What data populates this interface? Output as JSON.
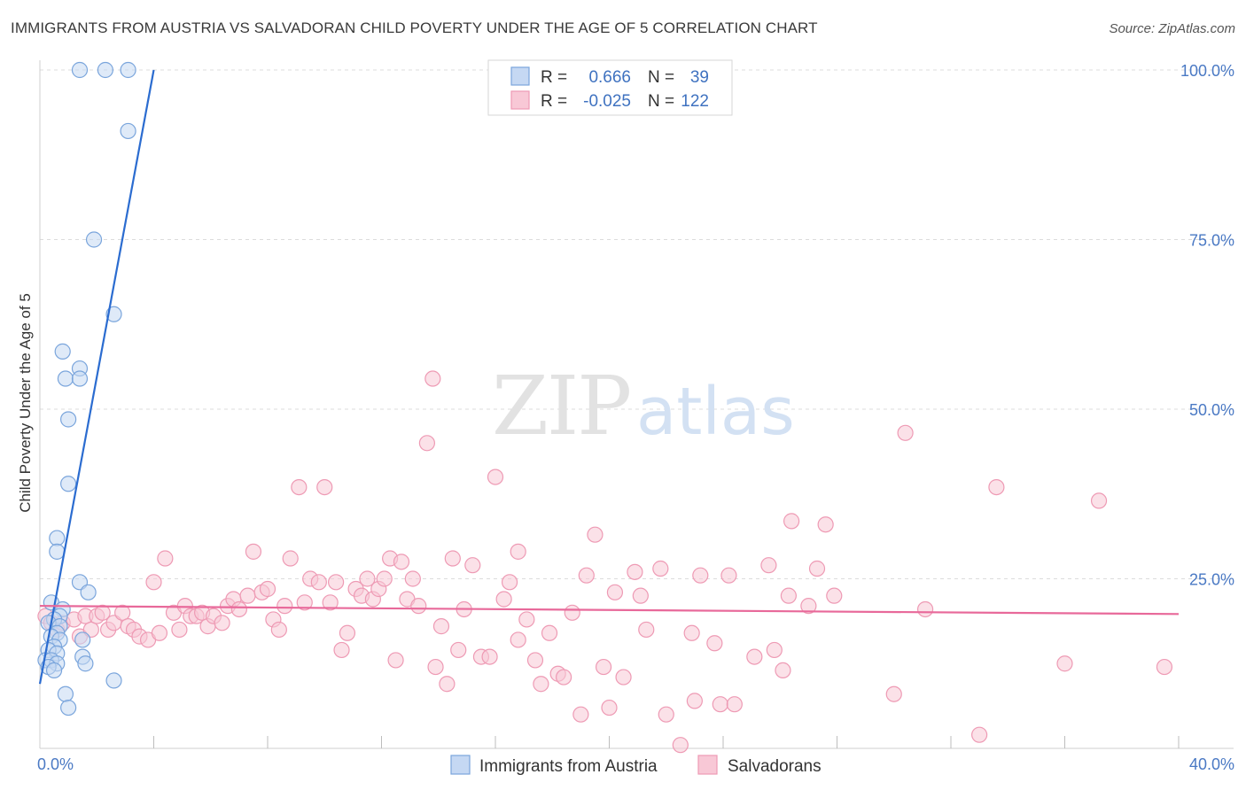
{
  "title": "IMMIGRANTS FROM AUSTRIA VS SALVADORAN CHILD POVERTY UNDER THE AGE OF 5 CORRELATION CHART",
  "source": "Source: ZipAtlas.com",
  "watermark": {
    "zip": "ZIP",
    "atlas": "atlas"
  },
  "colors": {
    "blue_fill": "#c5d8f3",
    "blue_stroke": "#7aa5dc",
    "blue_line": "#2b6cd0",
    "pink_fill": "#f8c8d6",
    "pink_stroke": "#ee9ab4",
    "pink_line": "#e8699a",
    "grid": "#dcdcdc",
    "tick_text": "#4a79c4"
  },
  "legend": {
    "rows": [
      {
        "r_label": "R =",
        "r_value": "0.666",
        "n_label": "N =",
        "n_value": "39"
      },
      {
        "r_label": "R =",
        "r_value": "-0.025",
        "n_label": "N =",
        "n_value": "122"
      }
    ]
  },
  "chart_data": {
    "type": "scatter",
    "xlabel": "",
    "ylabel": "Child Poverty Under the Age of 5",
    "xlim": [
      0,
      40
    ],
    "ylim": [
      0,
      100
    ],
    "x_tick_labels": [
      "0.0%",
      "40.0%"
    ],
    "y_ticks": [
      25,
      50,
      75,
      100
    ],
    "y_tick_labels": [
      "25.0%",
      "50.0%",
      "75.0%",
      "100.0%"
    ],
    "grid": true,
    "legend_position": "top-center",
    "series": [
      {
        "name": "Immigrants from Austria",
        "color": "#c5d8f3",
        "trend": {
          "x": [
            0.0,
            4.0
          ],
          "y": [
            9.5,
            100.0
          ]
        },
        "points": [
          [
            1.4,
            100
          ],
          [
            2.3,
            100
          ],
          [
            3.1,
            100
          ],
          [
            3.1,
            91
          ],
          [
            1.9,
            75
          ],
          [
            2.6,
            64
          ],
          [
            0.8,
            58.5
          ],
          [
            1.4,
            56
          ],
          [
            0.9,
            54.5
          ],
          [
            1.4,
            54.5
          ],
          [
            1.0,
            48.5
          ],
          [
            1.0,
            39
          ],
          [
            0.6,
            31
          ],
          [
            0.6,
            29
          ],
          [
            1.4,
            24.5
          ],
          [
            1.7,
            23
          ],
          [
            0.4,
            21.5
          ],
          [
            0.8,
            20.5
          ],
          [
            0.7,
            19.5
          ],
          [
            0.5,
            19
          ],
          [
            0.3,
            18.5
          ],
          [
            0.7,
            18
          ],
          [
            0.6,
            17
          ],
          [
            0.4,
            16.5
          ],
          [
            0.7,
            16
          ],
          [
            1.5,
            16
          ],
          [
            0.5,
            15
          ],
          [
            0.3,
            14.5
          ],
          [
            0.6,
            14
          ],
          [
            1.5,
            13.5
          ],
          [
            0.2,
            13
          ],
          [
            0.4,
            13
          ],
          [
            0.6,
            12.5
          ],
          [
            1.6,
            12.5
          ],
          [
            0.3,
            12
          ],
          [
            0.5,
            11.5
          ],
          [
            2.6,
            10
          ],
          [
            0.9,
            8
          ],
          [
            1.0,
            6
          ]
        ]
      },
      {
        "name": "Salvadorans",
        "color": "#f8c8d6",
        "trend": {
          "x": [
            0.0,
            40.0
          ],
          "y": [
            21.0,
            19.8
          ]
        },
        "points": [
          [
            0.2,
            19.5
          ],
          [
            0.4,
            18.5
          ],
          [
            0.6,
            17.5
          ],
          [
            0.8,
            18.5
          ],
          [
            1.2,
            19
          ],
          [
            1.4,
            16.5
          ],
          [
            1.6,
            19.5
          ],
          [
            1.8,
            17.5
          ],
          [
            2.0,
            19.5
          ],
          [
            2.2,
            20
          ],
          [
            2.4,
            17.5
          ],
          [
            2.6,
            18.5
          ],
          [
            2.9,
            20
          ],
          [
            3.1,
            18
          ],
          [
            3.3,
            17.5
          ],
          [
            3.5,
            16.5
          ],
          [
            3.8,
            16
          ],
          [
            4.0,
            24.5
          ],
          [
            4.2,
            17
          ],
          [
            4.4,
            28
          ],
          [
            4.7,
            20
          ],
          [
            4.9,
            17.5
          ],
          [
            5.1,
            21
          ],
          [
            5.3,
            19.5
          ],
          [
            5.5,
            19.5
          ],
          [
            5.7,
            20
          ],
          [
            5.9,
            18
          ],
          [
            6.1,
            19.5
          ],
          [
            6.4,
            18.5
          ],
          [
            6.6,
            21
          ],
          [
            6.8,
            22
          ],
          [
            7.0,
            20.5
          ],
          [
            7.3,
            22.5
          ],
          [
            7.5,
            29
          ],
          [
            7.8,
            23
          ],
          [
            8.0,
            23.5
          ],
          [
            8.2,
            19
          ],
          [
            8.4,
            17.5
          ],
          [
            8.6,
            21
          ],
          [
            8.8,
            28
          ],
          [
            9.1,
            38.5
          ],
          [
            9.3,
            21.5
          ],
          [
            9.5,
            25
          ],
          [
            9.8,
            24.5
          ],
          [
            10.0,
            38.5
          ],
          [
            10.2,
            21.5
          ],
          [
            10.4,
            24.5
          ],
          [
            10.6,
            14.5
          ],
          [
            10.8,
            17
          ],
          [
            11.1,
            23.5
          ],
          [
            11.3,
            22.5
          ],
          [
            11.5,
            25
          ],
          [
            11.7,
            22
          ],
          [
            11.9,
            23.5
          ],
          [
            12.1,
            25
          ],
          [
            12.3,
            28
          ],
          [
            12.5,
            13
          ],
          [
            12.7,
            27.5
          ],
          [
            12.9,
            22
          ],
          [
            13.1,
            25
          ],
          [
            13.3,
            21
          ],
          [
            13.8,
            54.5
          ],
          [
            13.6,
            45
          ],
          [
            13.9,
            12
          ],
          [
            14.1,
            18
          ],
          [
            14.3,
            9.5
          ],
          [
            14.5,
            28
          ],
          [
            14.7,
            14.5
          ],
          [
            14.9,
            20.5
          ],
          [
            15.2,
            27
          ],
          [
            15.5,
            13.5
          ],
          [
            15.8,
            13.5
          ],
          [
            16.0,
            40
          ],
          [
            16.3,
            22
          ],
          [
            16.5,
            24.5
          ],
          [
            16.8,
            29
          ],
          [
            16.8,
            16
          ],
          [
            17.1,
            19
          ],
          [
            17.4,
            13
          ],
          [
            17.6,
            9.5
          ],
          [
            17.9,
            17
          ],
          [
            18.2,
            11
          ],
          [
            18.4,
            10.5
          ],
          [
            18.7,
            20
          ],
          [
            19.0,
            5
          ],
          [
            19.2,
            25.5
          ],
          [
            19.5,
            31.5
          ],
          [
            19.8,
            12
          ],
          [
            20.0,
            6
          ],
          [
            20.2,
            23
          ],
          [
            20.5,
            10.5
          ],
          [
            20.9,
            26
          ],
          [
            21.1,
            22.5
          ],
          [
            21.3,
            17.5
          ],
          [
            21.8,
            26.5
          ],
          [
            22.0,
            5
          ],
          [
            22.5,
            0.5
          ],
          [
            22.9,
            17
          ],
          [
            23.0,
            7
          ],
          [
            23.2,
            25.5
          ],
          [
            23.7,
            15.5
          ],
          [
            23.9,
            6.5
          ],
          [
            24.2,
            25.5
          ],
          [
            24.4,
            6.5
          ],
          [
            25.1,
            13.5
          ],
          [
            25.6,
            27
          ],
          [
            25.8,
            14.5
          ],
          [
            26.1,
            11.5
          ],
          [
            26.3,
            22.5
          ],
          [
            26.4,
            33.5
          ],
          [
            27.0,
            21
          ],
          [
            27.3,
            26.5
          ],
          [
            27.6,
            33
          ],
          [
            27.9,
            22.5
          ],
          [
            30.0,
            8
          ],
          [
            30.4,
            46.5
          ],
          [
            31.1,
            20.5
          ],
          [
            33.0,
            2
          ],
          [
            33.6,
            38.5
          ],
          [
            36.0,
            12.5
          ],
          [
            37.2,
            36.5
          ],
          [
            39.5,
            12
          ]
        ]
      }
    ]
  }
}
